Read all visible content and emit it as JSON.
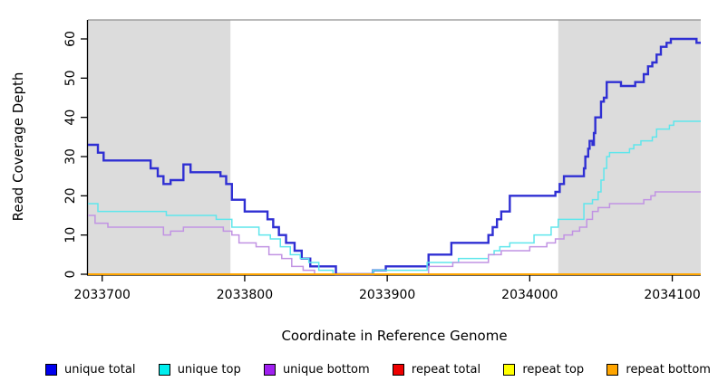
{
  "chart_data": {
    "type": "line",
    "style": "step-after",
    "title": "",
    "xlabel": "Coordinate in Reference Genome",
    "ylabel": "Read Coverage Depth",
    "xlim": [
      2033690,
      2034120
    ],
    "ylim": [
      0,
      65
    ],
    "x_ticks": [
      2033700,
      2033800,
      2033900,
      2034000,
      2034100
    ],
    "y_ticks": [
      0,
      10,
      20,
      30,
      40,
      50,
      60
    ],
    "grid": false,
    "legend_position": "bottom",
    "shaded_regions": [
      {
        "x0": 2033690,
        "x1": 2033790,
        "color": "#dcdcdc"
      },
      {
        "x0": 2034020,
        "x1": 2034120,
        "color": "#dcdcdc"
      }
    ],
    "colors": {
      "plot_top_border": "#909090",
      "axis": "#000000",
      "band": "#dcdcdc"
    },
    "series": [
      {
        "name": "unique total",
        "color": "#2f2fd3",
        "legend_color": "#0000ee",
        "width": 2.4,
        "points": [
          [
            2033690,
            33
          ],
          [
            2033697,
            31
          ],
          [
            2033701,
            29
          ],
          [
            2033734,
            27
          ],
          [
            2033739,
            25
          ],
          [
            2033743,
            23
          ],
          [
            2033748,
            24
          ],
          [
            2033757,
            28
          ],
          [
            2033762,
            26
          ],
          [
            2033783,
            25
          ],
          [
            2033787,
            23
          ],
          [
            2033791,
            19
          ],
          [
            2033800,
            16
          ],
          [
            2033816,
            14
          ],
          [
            2033820,
            12
          ],
          [
            2033824,
            10
          ],
          [
            2033829,
            8
          ],
          [
            2033835,
            6
          ],
          [
            2033840,
            4
          ],
          [
            2033846,
            2
          ],
          [
            2033864,
            0
          ],
          [
            2033890,
            1
          ],
          [
            2033899,
            2
          ],
          [
            2033929,
            5
          ],
          [
            2033945,
            8
          ],
          [
            2033971,
            10
          ],
          [
            2033974,
            12
          ],
          [
            2033977,
            14
          ],
          [
            2033980,
            16
          ],
          [
            2033986,
            20
          ],
          [
            2034018,
            21
          ],
          [
            2034021,
            23
          ],
          [
            2034024,
            25
          ],
          [
            2034038,
            27
          ],
          [
            2034039,
            30
          ],
          [
            2034041,
            32
          ],
          [
            2034042,
            34
          ],
          [
            2034044,
            33
          ],
          [
            2034045,
            36
          ],
          [
            2034046,
            40
          ],
          [
            2034050,
            44
          ],
          [
            2034052,
            45
          ],
          [
            2034054,
            49
          ],
          [
            2034064,
            48
          ],
          [
            2034074,
            49
          ],
          [
            2034080,
            51
          ],
          [
            2034083,
            53
          ],
          [
            2034086,
            54
          ],
          [
            2034089,
            56
          ],
          [
            2034092,
            58
          ],
          [
            2034096,
            59
          ],
          [
            2034099,
            60
          ],
          [
            2034117,
            59
          ],
          [
            2034120,
            59
          ]
        ]
      },
      {
        "name": "unique top",
        "color": "#5fe6ec",
        "legend_color": "#00eeee",
        "width": 1.5,
        "points": [
          [
            2033690,
            18
          ],
          [
            2033697,
            16
          ],
          [
            2033745,
            15
          ],
          [
            2033780,
            14
          ],
          [
            2033791,
            12
          ],
          [
            2033810,
            10
          ],
          [
            2033818,
            9
          ],
          [
            2033825,
            7
          ],
          [
            2033832,
            5
          ],
          [
            2033839,
            4
          ],
          [
            2033845,
            3
          ],
          [
            2033852,
            1
          ],
          [
            2033862,
            0
          ],
          [
            2033890,
            1
          ],
          [
            2033928,
            3
          ],
          [
            2033950,
            4
          ],
          [
            2033971,
            5
          ],
          [
            2033975,
            6
          ],
          [
            2033979,
            7
          ],
          [
            2033986,
            8
          ],
          [
            2034003,
            10
          ],
          [
            2034015,
            12
          ],
          [
            2034020,
            14
          ],
          [
            2034038,
            18
          ],
          [
            2034044,
            19
          ],
          [
            2034048,
            21
          ],
          [
            2034050,
            24
          ],
          [
            2034052,
            27
          ],
          [
            2034054,
            30
          ],
          [
            2034056,
            31
          ],
          [
            2034070,
            32
          ],
          [
            2034073,
            33
          ],
          [
            2034078,
            34
          ],
          [
            2034086,
            35
          ],
          [
            2034089,
            37
          ],
          [
            2034098,
            38
          ],
          [
            2034101,
            39
          ],
          [
            2034120,
            39
          ]
        ]
      },
      {
        "name": "unique bottom",
        "color": "#c193e3",
        "legend_color": "#a020f0",
        "width": 1.5,
        "points": [
          [
            2033690,
            15
          ],
          [
            2033695,
            13
          ],
          [
            2033704,
            12
          ],
          [
            2033743,
            10
          ],
          [
            2033748,
            11
          ],
          [
            2033757,
            12
          ],
          [
            2033785,
            11
          ],
          [
            2033791,
            10
          ],
          [
            2033796,
            8
          ],
          [
            2033808,
            7
          ],
          [
            2033817,
            5
          ],
          [
            2033826,
            4
          ],
          [
            2033833,
            2
          ],
          [
            2033841,
            1
          ],
          [
            2033849,
            0
          ],
          [
            2033929,
            2
          ],
          [
            2033946,
            3
          ],
          [
            2033971,
            5
          ],
          [
            2033980,
            6
          ],
          [
            2034000,
            7
          ],
          [
            2034012,
            8
          ],
          [
            2034018,
            9
          ],
          [
            2034024,
            10
          ],
          [
            2034030,
            11
          ],
          [
            2034035,
            12
          ],
          [
            2034040,
            14
          ],
          [
            2034044,
            16
          ],
          [
            2034048,
            17
          ],
          [
            2034056,
            18
          ],
          [
            2034080,
            19
          ],
          [
            2034085,
            20
          ],
          [
            2034088,
            21
          ],
          [
            2034120,
            21
          ]
        ]
      },
      {
        "name": "repeat total",
        "color": "#ee0000",
        "legend_color": "#ee0000",
        "width": 1.5,
        "points": [
          [
            2033690,
            0
          ],
          [
            2034120,
            0
          ]
        ]
      },
      {
        "name": "repeat top",
        "color": "#ffff00",
        "legend_color": "#ffff00",
        "width": 1.5,
        "points": [
          [
            2033690,
            0
          ],
          [
            2034120,
            0
          ]
        ]
      },
      {
        "name": "repeat bottom",
        "color": "#ffa500",
        "legend_color": "#ffa500",
        "width": 2,
        "points": [
          [
            2033690,
            0
          ],
          [
            2034120,
            0
          ]
        ]
      }
    ]
  }
}
